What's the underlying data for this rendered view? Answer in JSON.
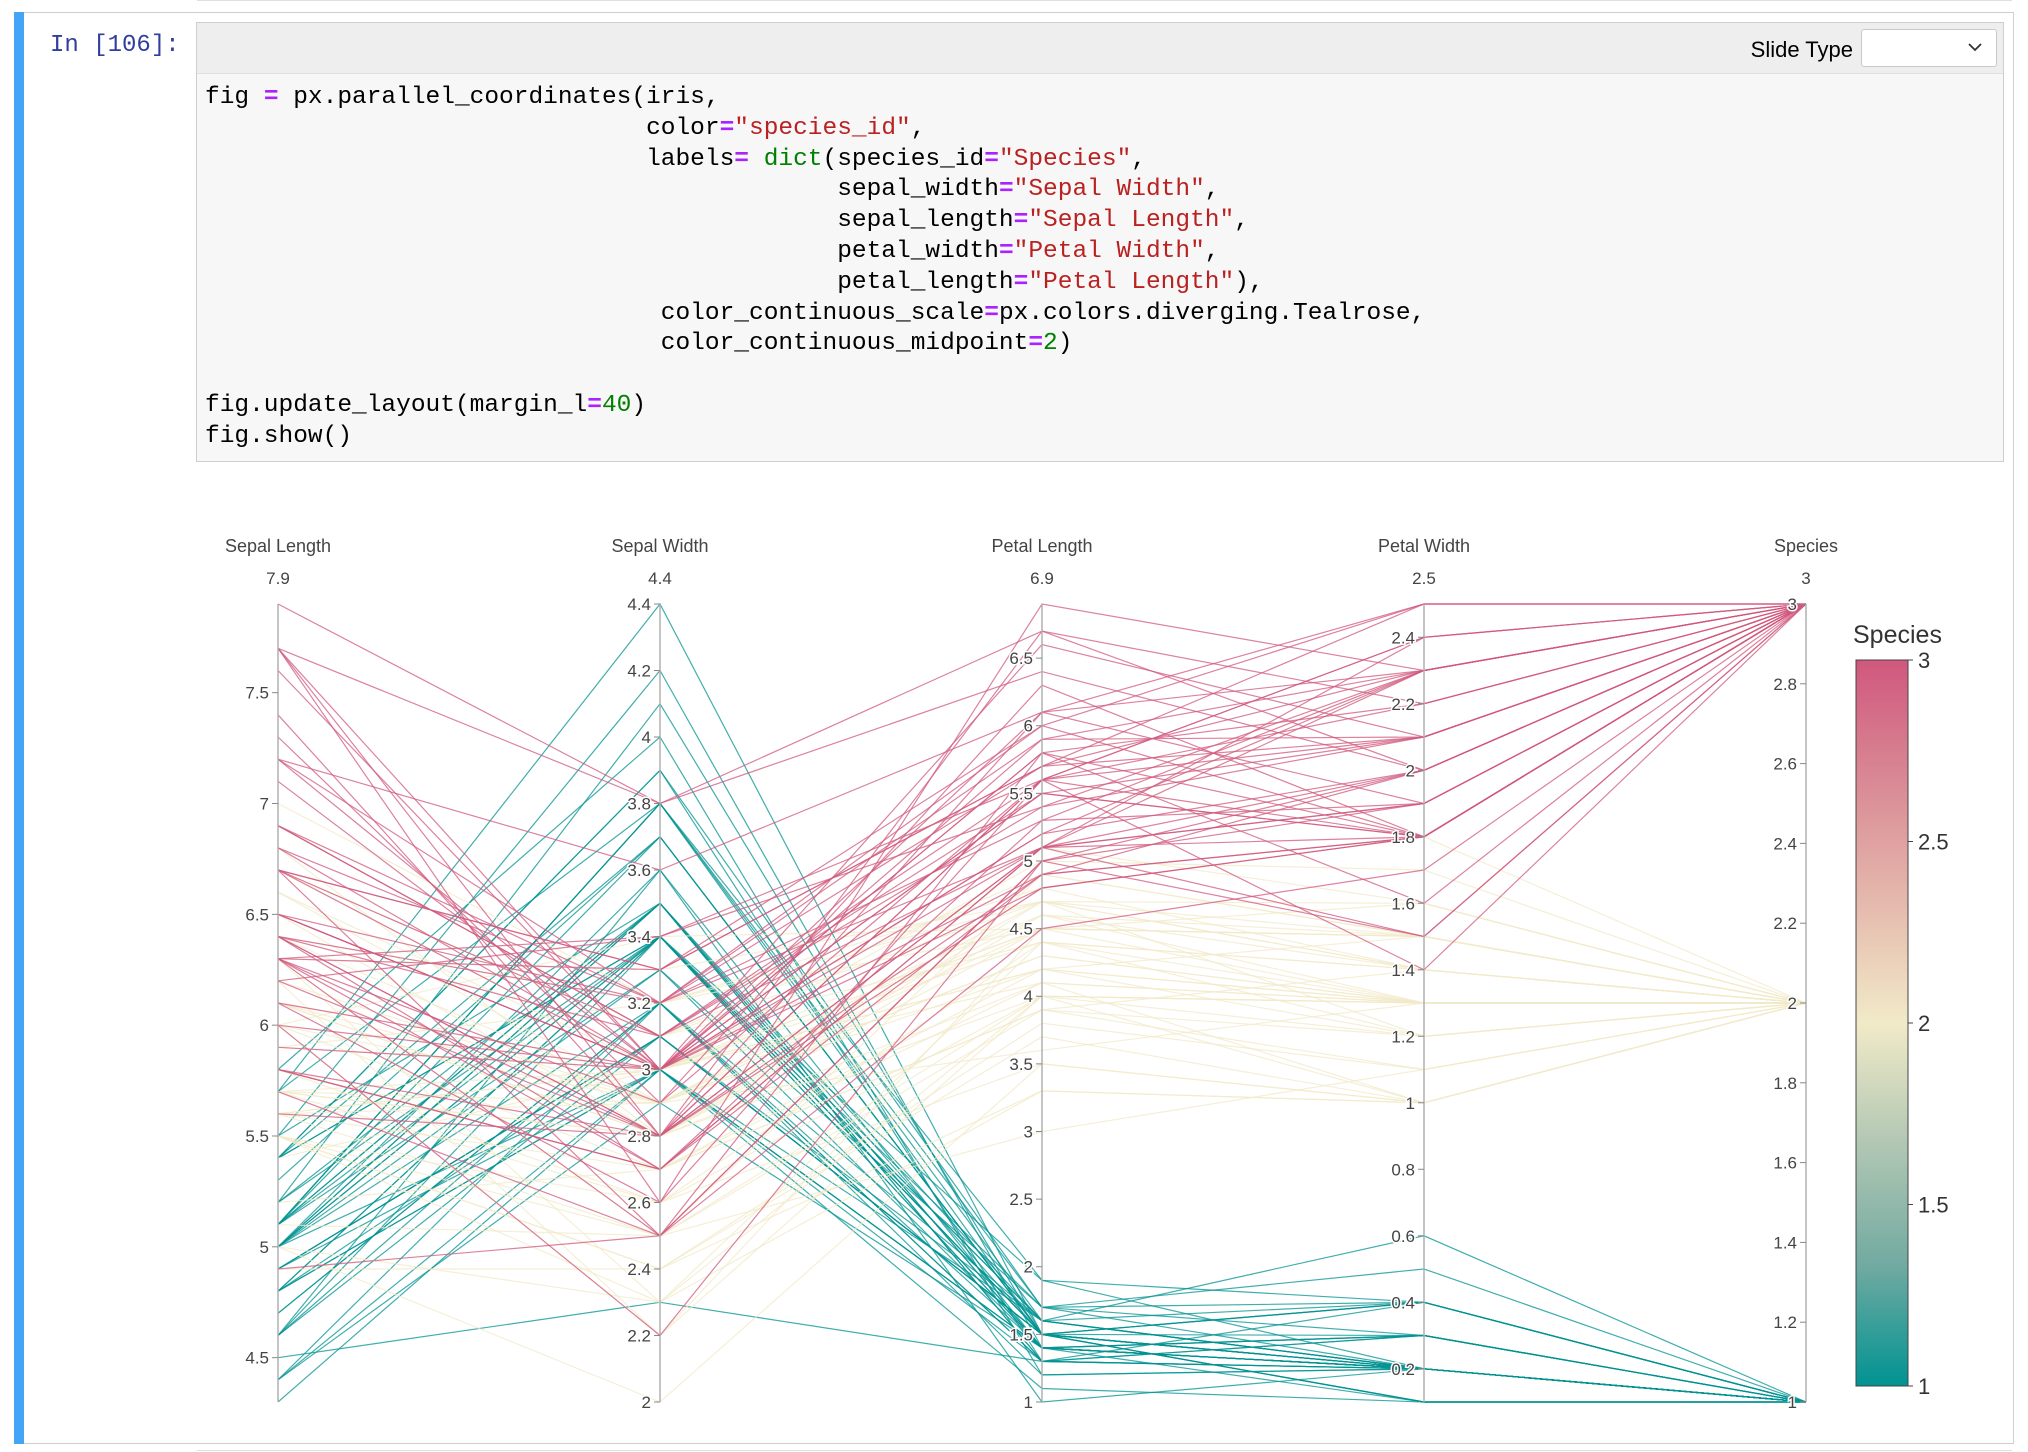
{
  "cell": {
    "prompt": "In [106]:",
    "slide_type_label": "Slide Type",
    "slide_type_value": "",
    "code_lines": [
      [
        [
          "t",
          "fig "
        ],
        [
          "o",
          "="
        ],
        [
          "t",
          " px.parallel_coordinates(iris,"
        ]
      ],
      [
        [
          "t",
          "                              color"
        ],
        [
          "o",
          "="
        ],
        [
          "s",
          "\"species_id\""
        ],
        [
          "t",
          ","
        ]
      ],
      [
        [
          "t",
          "                              labels"
        ],
        [
          "o",
          "="
        ],
        [
          "t",
          " "
        ],
        [
          "b",
          "dict"
        ],
        [
          "t",
          "(species_id"
        ],
        [
          "o",
          "="
        ],
        [
          "s",
          "\"Species\""
        ],
        [
          "t",
          ","
        ]
      ],
      [
        [
          "t",
          "                                           sepal_width"
        ],
        [
          "o",
          "="
        ],
        [
          "s",
          "\"Sepal Width\""
        ],
        [
          "t",
          ","
        ]
      ],
      [
        [
          "t",
          "                                           sepal_length"
        ],
        [
          "o",
          "="
        ],
        [
          "s",
          "\"Sepal Length\""
        ],
        [
          "t",
          ","
        ]
      ],
      [
        [
          "t",
          "                                           petal_width"
        ],
        [
          "o",
          "="
        ],
        [
          "s",
          "\"Petal Width\""
        ],
        [
          "t",
          ","
        ]
      ],
      [
        [
          "t",
          "                                           petal_length"
        ],
        [
          "o",
          "="
        ],
        [
          "s",
          "\"Petal Length\""
        ],
        [
          "t",
          "),"
        ]
      ],
      [
        [
          "t",
          "                               color_continuous_scale"
        ],
        [
          "o",
          "="
        ],
        [
          "t",
          "px.colors.diverging.Tealrose,"
        ]
      ],
      [
        [
          "t",
          "                               color_continuous_midpoint"
        ],
        [
          "o",
          "="
        ],
        [
          "n",
          "2"
        ],
        [
          "t",
          ")"
        ]
      ],
      [
        [
          "t",
          ""
        ]
      ],
      [
        [
          "t",
          "fig.update_layout(margin_l"
        ],
        [
          "o",
          "="
        ],
        [
          "n",
          "40"
        ],
        [
          "t",
          ")"
        ]
      ],
      [
        [
          "t",
          "fig.show()"
        ]
      ]
    ]
  },
  "chart_data": {
    "type": "parallel_coordinates",
    "dimensions": [
      {
        "label": "Sepal Length",
        "range": [
          4.3,
          7.9
        ],
        "max_label": "7.9",
        "ticks": [
          4.5,
          5,
          5.5,
          6,
          6.5,
          7,
          7.5
        ]
      },
      {
        "label": "Sepal Width",
        "range": [
          2,
          4.4
        ],
        "max_label": "4.4",
        "ticks": [
          2,
          2.2,
          2.4,
          2.6,
          2.8,
          3,
          3.2,
          3.4,
          3.6,
          3.8,
          4,
          4.2,
          4.4
        ]
      },
      {
        "label": "Petal Length",
        "range": [
          1,
          6.9
        ],
        "max_label": "6.9",
        "ticks": [
          1,
          1.5,
          2,
          2.5,
          3,
          3.5,
          4,
          4.5,
          5,
          5.5,
          6,
          6.5
        ]
      },
      {
        "label": "Petal Width",
        "range": [
          0.1,
          2.5
        ],
        "max_label": "2.5",
        "ticks": [
          0.2,
          0.4,
          0.6,
          0.8,
          1,
          1.2,
          1.4,
          1.6,
          1.8,
          2,
          2.2,
          2.4
        ]
      },
      {
        "label": "Species",
        "range": [
          1,
          3
        ],
        "max_label": "3",
        "ticks": [
          1,
          1.2,
          1.4,
          1.6,
          1.8,
          2,
          2.2,
          2.4,
          2.6,
          2.8,
          3
        ]
      }
    ],
    "colorbar": {
      "title": "Species",
      "range": [
        1,
        3
      ],
      "ticks": [
        1,
        1.5,
        2,
        2.5,
        3
      ],
      "colors": [
        "#009392",
        "#72aaa1",
        "#b1c7b3",
        "#f1eac8",
        "#e5b9ad",
        "#d98994",
        "#d0587e"
      ]
    },
    "rows": [
      [
        5.1,
        3.5,
        1.4,
        0.2,
        1
      ],
      [
        4.9,
        3.0,
        1.4,
        0.2,
        1
      ],
      [
        4.7,
        3.2,
        1.3,
        0.2,
        1
      ],
      [
        4.6,
        3.1,
        1.5,
        0.2,
        1
      ],
      [
        5.0,
        3.6,
        1.4,
        0.2,
        1
      ],
      [
        5.4,
        3.9,
        1.7,
        0.4,
        1
      ],
      [
        4.6,
        3.4,
        1.4,
        0.3,
        1
      ],
      [
        5.0,
        3.4,
        1.5,
        0.2,
        1
      ],
      [
        4.4,
        2.9,
        1.4,
        0.2,
        1
      ],
      [
        4.9,
        3.1,
        1.5,
        0.1,
        1
      ],
      [
        5.4,
        3.7,
        1.5,
        0.2,
        1
      ],
      [
        4.8,
        3.4,
        1.6,
        0.2,
        1
      ],
      [
        4.8,
        3.0,
        1.4,
        0.1,
        1
      ],
      [
        4.3,
        3.0,
        1.1,
        0.1,
        1
      ],
      [
        5.8,
        4.0,
        1.2,
        0.2,
        1
      ],
      [
        5.7,
        4.4,
        1.5,
        0.4,
        1
      ],
      [
        5.4,
        3.9,
        1.3,
        0.4,
        1
      ],
      [
        5.1,
        3.5,
        1.4,
        0.3,
        1
      ],
      [
        5.7,
        3.8,
        1.7,
        0.3,
        1
      ],
      [
        5.1,
        3.8,
        1.5,
        0.3,
        1
      ],
      [
        5.4,
        3.4,
        1.7,
        0.2,
        1
      ],
      [
        5.1,
        3.7,
        1.5,
        0.4,
        1
      ],
      [
        4.6,
        3.6,
        1.0,
        0.2,
        1
      ],
      [
        5.1,
        3.3,
        1.7,
        0.5,
        1
      ],
      [
        4.8,
        3.4,
        1.9,
        0.2,
        1
      ],
      [
        5.0,
        3.0,
        1.6,
        0.2,
        1
      ],
      [
        5.0,
        3.4,
        1.6,
        0.4,
        1
      ],
      [
        5.2,
        3.5,
        1.5,
        0.2,
        1
      ],
      [
        5.2,
        3.4,
        1.4,
        0.2,
        1
      ],
      [
        4.7,
        3.2,
        1.6,
        0.2,
        1
      ],
      [
        4.8,
        3.1,
        1.6,
        0.2,
        1
      ],
      [
        5.4,
        3.4,
        1.5,
        0.4,
        1
      ],
      [
        5.2,
        4.1,
        1.5,
        0.1,
        1
      ],
      [
        5.5,
        4.2,
        1.4,
        0.2,
        1
      ],
      [
        4.9,
        3.1,
        1.5,
        0.1,
        1
      ],
      [
        5.0,
        3.2,
        1.2,
        0.2,
        1
      ],
      [
        5.5,
        3.5,
        1.3,
        0.2,
        1
      ],
      [
        4.9,
        3.1,
        1.5,
        0.1,
        1
      ],
      [
        4.4,
        3.0,
        1.3,
        0.2,
        1
      ],
      [
        5.1,
        3.4,
        1.5,
        0.2,
        1
      ],
      [
        5.0,
        3.5,
        1.3,
        0.3,
        1
      ],
      [
        4.5,
        2.3,
        1.3,
        0.3,
        1
      ],
      [
        4.4,
        3.2,
        1.3,
        0.2,
        1
      ],
      [
        5.0,
        3.5,
        1.6,
        0.6,
        1
      ],
      [
        5.1,
        3.8,
        1.9,
        0.4,
        1
      ],
      [
        4.8,
        3.0,
        1.4,
        0.3,
        1
      ],
      [
        5.1,
        3.8,
        1.6,
        0.2,
        1
      ],
      [
        4.6,
        3.2,
        1.4,
        0.2,
        1
      ],
      [
        5.3,
        3.7,
        1.5,
        0.2,
        1
      ],
      [
        5.0,
        3.3,
        1.4,
        0.2,
        1
      ],
      [
        7.0,
        3.2,
        4.7,
        1.4,
        2
      ],
      [
        6.4,
        3.2,
        4.5,
        1.5,
        2
      ],
      [
        6.9,
        3.1,
        4.9,
        1.5,
        2
      ],
      [
        5.5,
        2.3,
        4.0,
        1.3,
        2
      ],
      [
        6.5,
        2.8,
        4.6,
        1.5,
        2
      ],
      [
        5.7,
        2.8,
        4.5,
        1.3,
        2
      ],
      [
        6.3,
        3.3,
        4.7,
        1.6,
        2
      ],
      [
        4.9,
        2.4,
        3.3,
        1.0,
        2
      ],
      [
        6.6,
        2.9,
        4.6,
        1.3,
        2
      ],
      [
        5.2,
        2.7,
        3.9,
        1.4,
        2
      ],
      [
        5.0,
        2.0,
        3.5,
        1.0,
        2
      ],
      [
        5.9,
        3.0,
        4.2,
        1.5,
        2
      ],
      [
        6.0,
        2.2,
        4.0,
        1.0,
        2
      ],
      [
        6.1,
        2.9,
        4.7,
        1.4,
        2
      ],
      [
        5.6,
        2.9,
        3.6,
        1.3,
        2
      ],
      [
        6.7,
        3.1,
        4.4,
        1.4,
        2
      ],
      [
        5.6,
        3.0,
        4.5,
        1.5,
        2
      ],
      [
        5.8,
        2.7,
        4.1,
        1.0,
        2
      ],
      [
        6.2,
        2.2,
        4.5,
        1.5,
        2
      ],
      [
        5.6,
        2.5,
        3.9,
        1.1,
        2
      ],
      [
        5.9,
        3.2,
        4.8,
        1.8,
        2
      ],
      [
        6.1,
        2.8,
        4.0,
        1.3,
        2
      ],
      [
        6.3,
        2.5,
        4.9,
        1.5,
        2
      ],
      [
        6.1,
        2.8,
        4.7,
        1.2,
        2
      ],
      [
        6.4,
        2.9,
        4.3,
        1.3,
        2
      ],
      [
        6.6,
        3.0,
        4.4,
        1.4,
        2
      ],
      [
        6.8,
        2.8,
        4.8,
        1.4,
        2
      ],
      [
        6.7,
        3.0,
        5.0,
        1.7,
        2
      ],
      [
        6.0,
        2.9,
        4.5,
        1.5,
        2
      ],
      [
        5.7,
        2.6,
        3.5,
        1.0,
        2
      ],
      [
        5.5,
        2.4,
        3.8,
        1.1,
        2
      ],
      [
        5.5,
        2.4,
        3.7,
        1.0,
        2
      ],
      [
        5.8,
        2.7,
        3.9,
        1.2,
        2
      ],
      [
        6.0,
        2.7,
        5.1,
        1.6,
        2
      ],
      [
        5.4,
        3.0,
        4.5,
        1.5,
        2
      ],
      [
        6.0,
        3.4,
        4.5,
        1.6,
        2
      ],
      [
        6.7,
        3.1,
        4.7,
        1.5,
        2
      ],
      [
        6.3,
        2.3,
        4.4,
        1.3,
        2
      ],
      [
        5.6,
        3.0,
        4.1,
        1.3,
        2
      ],
      [
        5.5,
        2.5,
        4.0,
        1.3,
        2
      ],
      [
        5.5,
        2.6,
        4.4,
        1.2,
        2
      ],
      [
        6.1,
        3.0,
        4.6,
        1.4,
        2
      ],
      [
        5.8,
        2.6,
        4.0,
        1.2,
        2
      ],
      [
        5.0,
        2.3,
        3.3,
        1.0,
        2
      ],
      [
        5.6,
        2.7,
        4.2,
        1.3,
        2
      ],
      [
        5.7,
        3.0,
        4.2,
        1.2,
        2
      ],
      [
        5.7,
        2.9,
        4.2,
        1.3,
        2
      ],
      [
        6.2,
        2.9,
        4.3,
        1.3,
        2
      ],
      [
        5.1,
        2.5,
        3.0,
        1.1,
        2
      ],
      [
        5.7,
        2.8,
        4.1,
        1.3,
        2
      ],
      [
        6.3,
        3.3,
        6.0,
        2.5,
        3
      ],
      [
        5.8,
        2.7,
        5.1,
        1.9,
        3
      ],
      [
        7.1,
        3.0,
        5.9,
        2.1,
        3
      ],
      [
        6.3,
        2.9,
        5.6,
        1.8,
        3
      ],
      [
        6.5,
        3.0,
        5.8,
        2.2,
        3
      ],
      [
        7.6,
        3.0,
        6.6,
        2.1,
        3
      ],
      [
        4.9,
        2.5,
        4.5,
        1.7,
        3
      ],
      [
        7.3,
        2.9,
        6.3,
        1.8,
        3
      ],
      [
        6.7,
        2.5,
        5.8,
        1.8,
        3
      ],
      [
        7.2,
        3.6,
        6.1,
        2.5,
        3
      ],
      [
        6.5,
        3.2,
        5.1,
        2.0,
        3
      ],
      [
        6.4,
        2.7,
        5.3,
        1.9,
        3
      ],
      [
        6.8,
        3.0,
        5.5,
        2.1,
        3
      ],
      [
        5.7,
        2.5,
        5.0,
        2.0,
        3
      ],
      [
        5.8,
        2.8,
        5.1,
        2.4,
        3
      ],
      [
        6.4,
        3.2,
        5.3,
        2.3,
        3
      ],
      [
        6.5,
        3.0,
        5.5,
        1.8,
        3
      ],
      [
        7.7,
        3.8,
        6.7,
        2.2,
        3
      ],
      [
        7.7,
        2.6,
        6.9,
        2.3,
        3
      ],
      [
        6.0,
        2.2,
        5.0,
        1.5,
        3
      ],
      [
        6.9,
        3.2,
        5.7,
        2.3,
        3
      ],
      [
        5.6,
        2.8,
        4.9,
        2.0,
        3
      ],
      [
        7.7,
        2.8,
        6.7,
        2.0,
        3
      ],
      [
        6.3,
        2.7,
        4.9,
        1.8,
        3
      ],
      [
        6.7,
        3.3,
        5.7,
        2.1,
        3
      ],
      [
        7.2,
        3.2,
        6.0,
        1.8,
        3
      ],
      [
        6.2,
        2.8,
        4.8,
        1.8,
        3
      ],
      [
        6.1,
        3.0,
        4.9,
        1.8,
        3
      ],
      [
        6.4,
        2.8,
        5.6,
        2.1,
        3
      ],
      [
        7.2,
        3.0,
        5.8,
        1.6,
        3
      ],
      [
        7.4,
        2.8,
        6.1,
        1.9,
        3
      ],
      [
        7.9,
        3.8,
        6.4,
        2.0,
        3
      ],
      [
        6.4,
        2.8,
        5.6,
        2.2,
        3
      ],
      [
        6.3,
        2.8,
        5.1,
        1.5,
        3
      ],
      [
        6.1,
        2.6,
        5.6,
        1.4,
        3
      ],
      [
        7.7,
        3.0,
        6.1,
        2.3,
        3
      ],
      [
        6.3,
        3.4,
        5.6,
        2.4,
        3
      ],
      [
        6.4,
        3.1,
        5.5,
        1.8,
        3
      ],
      [
        6.0,
        3.0,
        4.8,
        1.8,
        3
      ],
      [
        6.9,
        3.1,
        5.4,
        2.1,
        3
      ],
      [
        6.7,
        3.1,
        5.6,
        2.4,
        3
      ],
      [
        6.9,
        3.1,
        5.1,
        2.3,
        3
      ],
      [
        5.8,
        2.7,
        5.1,
        1.9,
        3
      ],
      [
        6.8,
        3.2,
        5.9,
        2.3,
        3
      ],
      [
        6.7,
        3.3,
        5.7,
        2.5,
        3
      ],
      [
        6.7,
        3.0,
        5.2,
        2.3,
        3
      ],
      [
        6.3,
        2.5,
        5.0,
        1.9,
        3
      ],
      [
        6.5,
        3.0,
        5.2,
        2.0,
        3
      ],
      [
        6.2,
        3.4,
        5.4,
        2.3,
        3
      ],
      [
        5.9,
        3.0,
        5.1,
        1.8,
        3
      ]
    ]
  }
}
